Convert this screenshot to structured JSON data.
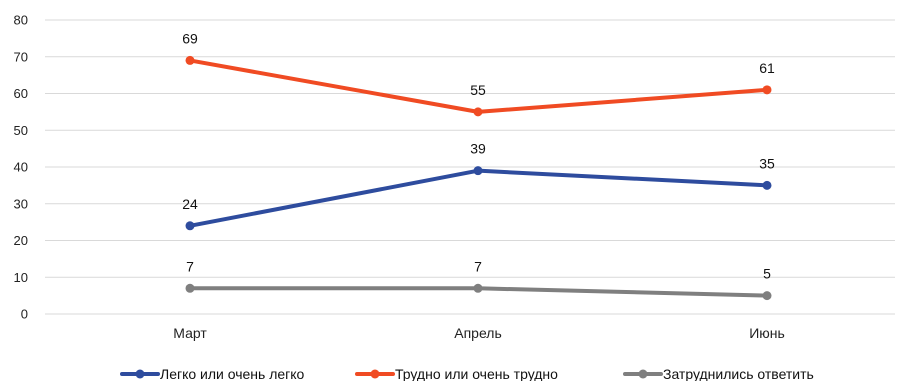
{
  "chart_data": {
    "type": "line",
    "title": "",
    "xlabel": "",
    "ylabel": "",
    "categories": [
      "Март",
      "Апрель",
      "Июнь"
    ],
    "ylim": [
      0,
      80
    ],
    "yticks": [
      0,
      10,
      20,
      30,
      40,
      50,
      60,
      70,
      80
    ],
    "grid": true,
    "legend_position": "bottom",
    "series": [
      {
        "name": "Легко или очень легко",
        "values": [
          24,
          39,
          35
        ],
        "labels": [
          "24",
          "39",
          "35"
        ],
        "color": "#2E4C9E"
      },
      {
        "name": "Трудно или очень трудно",
        "values": [
          69,
          55,
          61
        ],
        "labels": [
          "69",
          "55",
          "61"
        ],
        "color": "#F04B23"
      },
      {
        "name": "Затруднились ответить",
        "values": [
          7,
          7,
          5
        ],
        "labels": [
          "7",
          "7",
          "5"
        ],
        "color": "#7F7F7F"
      }
    ],
    "series_values_exact": [
      [
        24,
        39,
        35
      ],
      [
        69,
        55,
        61
      ],
      [
        7,
        7,
        5
      ]
    ]
  }
}
